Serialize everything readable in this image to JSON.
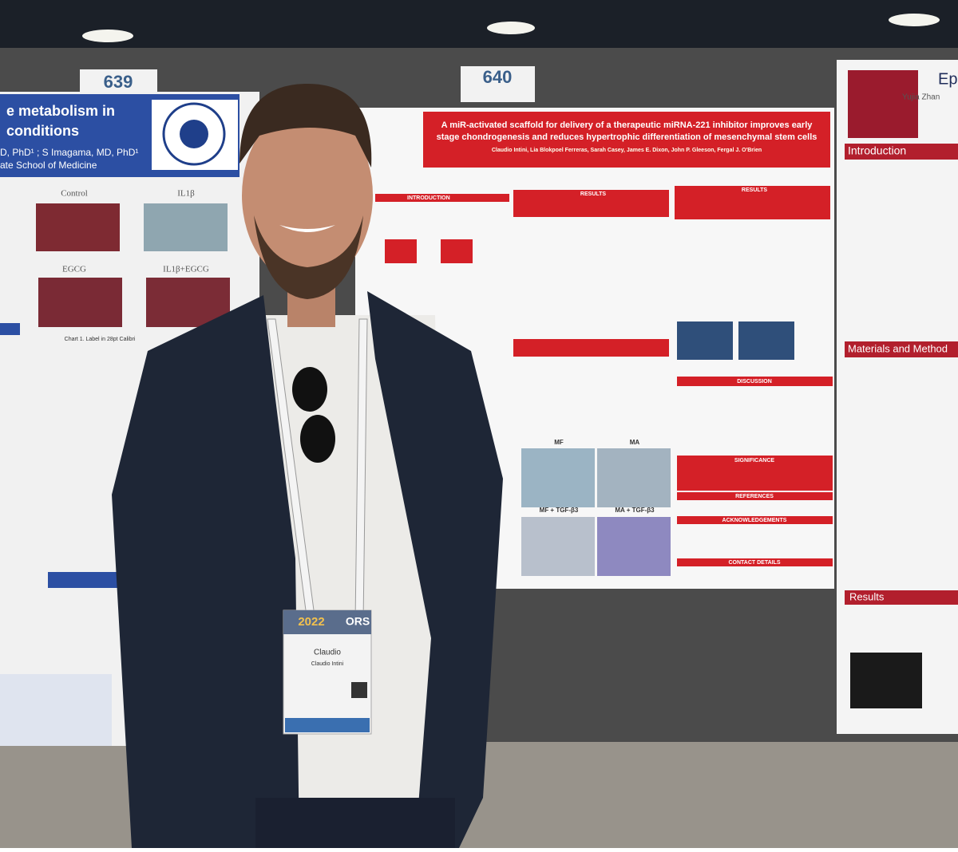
{
  "booths": [
    {
      "number": "639"
    },
    {
      "number": "640"
    }
  ],
  "left_poster": {
    "title_lines": [
      "e metabolism in",
      "conditions"
    ],
    "authors": "D, PhD¹ ; S Imagama, MD, PhD¹",
    "school": "ate School of Medicine",
    "panel_labels": [
      "Control",
      "IL1β",
      "EGCG",
      "IL1β+EGCG"
    ],
    "chart_caption": "Chart 1. Label in 28pt Calibri"
  },
  "center_poster": {
    "title_lines": [
      "A miR-activated scaffold for delivery of a therapeutic miRNA-221 inhibitor improves early",
      "stage chondrogenesis and reduces hypertrophic differentiation of mesenchymal stem cells"
    ],
    "authors": "Claudio Intini, Lia Blokpoel Ferreras, Sarah Casey, James E. Dixon, John P. Gleeson, Fergal J. O'Brien",
    "sections": [
      "INTRODUCTION",
      "RESULTS",
      "RESULTS",
      "DISCUSSION",
      "SIGNIFICANCE",
      "REFERENCES",
      "ACKNOWLEDGEMENTS",
      "CONTACT DETAILS"
    ],
    "image_labels": [
      "MF",
      "MA",
      "MF + TGF-β3",
      "MA + TGF-β3"
    ]
  },
  "right_poster": {
    "title": "Ep",
    "author": "Yujia Zhan",
    "sections": [
      "Introduction",
      "Materials and Method",
      "Results"
    ]
  },
  "badge": {
    "year": "2022",
    "org": "ORS",
    "first_name": "Claudio",
    "full_name": "Claudio Intini"
  }
}
